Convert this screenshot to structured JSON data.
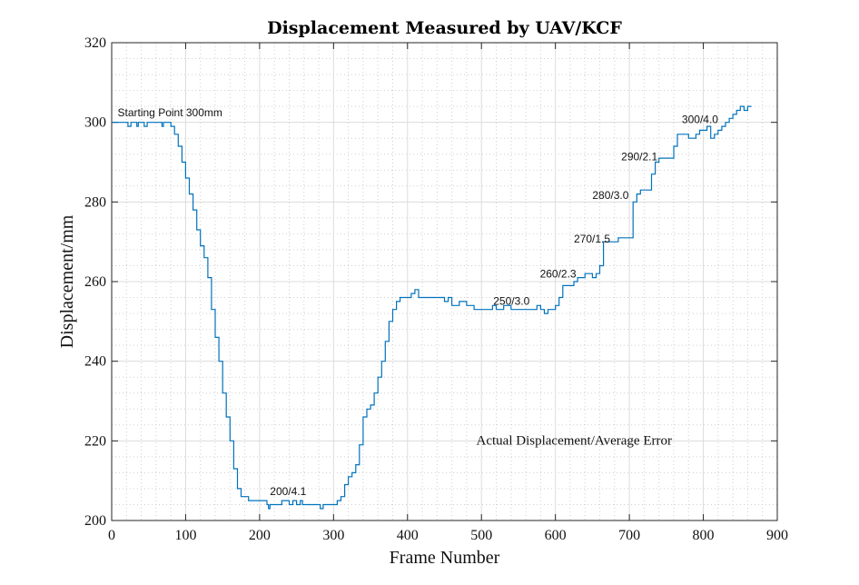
{
  "chart_data": {
    "type": "line",
    "title": "Displacement Measured by UAV/KCF",
    "xlabel": "Frame Number",
    "ylabel": "Displacement/mm",
    "xlim": [
      0,
      900
    ],
    "ylim": [
      200,
      320
    ],
    "xticks": [
      0,
      100,
      200,
      300,
      400,
      500,
      600,
      700,
      800,
      900
    ],
    "yticks": [
      200,
      220,
      240,
      260,
      280,
      300,
      320
    ],
    "grid": true,
    "series": [
      {
        "color": "#0072BD",
        "x": [
          0,
          20,
          22,
          26,
          30,
          34,
          36,
          40,
          44,
          48,
          50,
          56,
          64,
          68,
          70,
          72,
          80,
          85,
          90,
          95,
          100,
          105,
          110,
          115,
          120,
          125,
          130,
          135,
          140,
          145,
          150,
          155,
          160,
          165,
          170,
          175,
          180,
          185,
          190,
          195,
          200,
          210,
          212,
          214,
          216,
          220,
          230,
          240,
          245,
          250,
          255,
          258,
          262,
          266,
          270,
          280,
          282,
          286,
          290,
          300,
          305,
          310,
          315,
          320,
          325,
          330,
          335,
          340,
          345,
          350,
          355,
          360,
          365,
          370,
          375,
          380,
          385,
          390,
          395,
          400,
          405,
          410,
          415,
          420,
          425,
          430,
          440,
          450,
          455,
          460,
          465,
          470,
          480,
          490,
          495,
          500,
          505,
          510,
          515,
          520,
          530,
          540,
          550,
          560,
          570,
          575,
          580,
          585,
          590,
          595,
          600,
          605,
          610,
          615,
          620,
          625,
          630,
          635,
          640,
          645,
          650,
          655,
          660,
          665,
          670,
          675,
          680,
          685,
          690,
          695,
          700,
          705,
          710,
          715,
          720,
          725,
          730,
          735,
          740,
          745,
          750,
          755,
          760,
          765,
          770,
          775,
          780,
          785,
          790,
          795,
          800,
          805,
          810,
          815,
          820,
          825,
          830,
          835,
          840,
          845,
          850,
          855,
          860,
          865
        ],
        "y": [
          300,
          300,
          299,
          300,
          300,
          299,
          300,
          300,
          299,
          300,
          300,
          300,
          300,
          299,
          300,
          300,
          299,
          297,
          294,
          290,
          286,
          282,
          278,
          273,
          269,
          266,
          261,
          253,
          246,
          240,
          232,
          226,
          220,
          213,
          208,
          206,
          206,
          205,
          205,
          205,
          205,
          204,
          203,
          204,
          204,
          204,
          205,
          204,
          205,
          204,
          205,
          204,
          204,
          204,
          204,
          204,
          203,
          204,
          204,
          204,
          205,
          206,
          209,
          211,
          212,
          214,
          219,
          226,
          228,
          229,
          232,
          236,
          240,
          245,
          250,
          253,
          255,
          256,
          256,
          256,
          257,
          258,
          256,
          256,
          256,
          256,
          256,
          255,
          256,
          254,
          254,
          255,
          254,
          253,
          253,
          253,
          253,
          253,
          254,
          253,
          254,
          253,
          253,
          253,
          253,
          254,
          253,
          252,
          253,
          253,
          254,
          256,
          259,
          259,
          259,
          260,
          261,
          261,
          262,
          262,
          261,
          262,
          264,
          270,
          270,
          270,
          270,
          271,
          271,
          271,
          271,
          280,
          282,
          283,
          283,
          283,
          287,
          290,
          291,
          291,
          291,
          291,
          294,
          297,
          297,
          297,
          296,
          296,
          297,
          298,
          298,
          299,
          296,
          297,
          298,
          299,
          300,
          301,
          302,
          303,
          304,
          303,
          304,
          304
        ]
      }
    ],
    "annotations": [
      {
        "text": "Starting Point 300mm",
        "x": 8,
        "y": 301.5
      },
      {
        "text": "200/4.1",
        "x": 214,
        "y": 206.4
      },
      {
        "text": "250/3.0",
        "x": 516,
        "y": 254.2
      },
      {
        "text": "260/2.3",
        "x": 579,
        "y": 261.0
      },
      {
        "text": "270/1.5",
        "x": 625,
        "y": 269.8
      },
      {
        "text": "280/3.0",
        "x": 650,
        "y": 280.8
      },
      {
        "text": "290/2.1",
        "x": 689,
        "y": 290.4
      },
      {
        "text": "300/4.0",
        "x": 771,
        "y": 299.8
      },
      {
        "text": "Actual Displacement/Average Error",
        "x": 493,
        "y": 219.0,
        "style": "serif"
      }
    ]
  }
}
